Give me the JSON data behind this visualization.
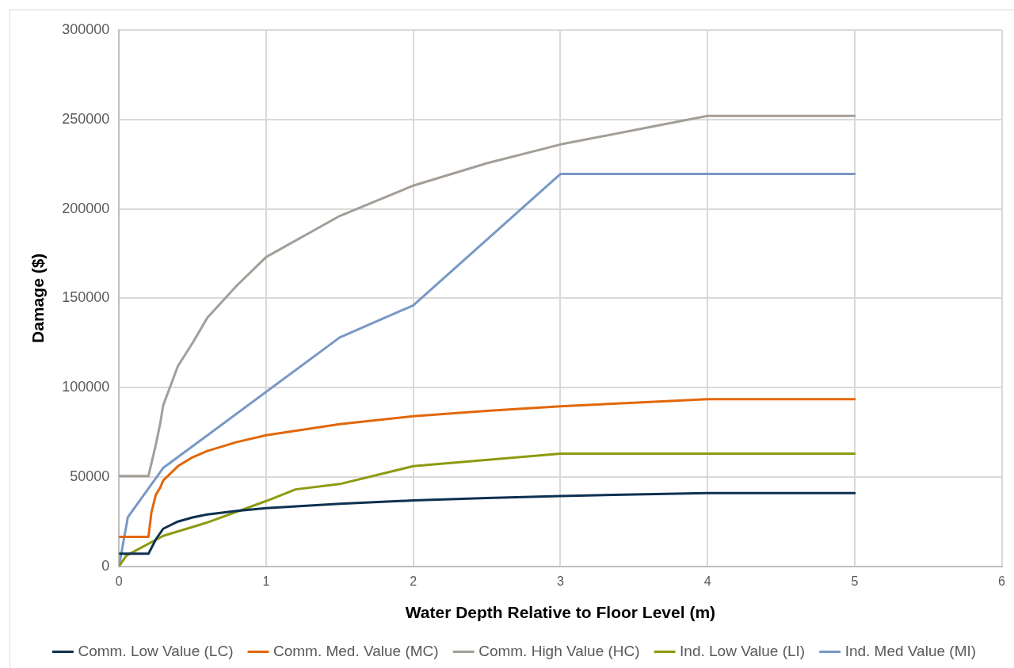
{
  "chart_data": {
    "type": "line",
    "xlabel": "Water Depth Relative to Floor Level (m)",
    "ylabel": "Damage ($)",
    "xlim": [
      0,
      6
    ],
    "xticks": [
      0,
      1,
      2,
      3,
      4,
      5,
      6
    ],
    "ylim": [
      0,
      300000
    ],
    "yticks": [
      0,
      50000,
      100000,
      150000,
      200000,
      250000,
      300000
    ],
    "grid": true,
    "legend": "bottom",
    "marker": "none",
    "line_style": "solid",
    "series": [
      {
        "name": "Comm. Low Value (LC)",
        "color": "#0e3150",
        "x": [
          0,
          0.2,
          0.25,
          0.3,
          0.4,
          0.5,
          0.6,
          0.8,
          1,
          1.5,
          2,
          2.5,
          3,
          3.5,
          4,
          5
        ],
        "values": [
          7000,
          7000,
          15000,
          21000,
          25000,
          27300,
          29000,
          31000,
          32500,
          35000,
          36800,
          38200,
          39300,
          40200,
          41000,
          41000
        ]
      },
      {
        "name": "Comm. Med. Value (MC)",
        "color": "#e2670a",
        "x": [
          0,
          0.2,
          0.22,
          0.25,
          0.28,
          0.3,
          0.4,
          0.5,
          0.6,
          0.8,
          1,
          1.5,
          2,
          2.5,
          3,
          3.5,
          4,
          5
        ],
        "values": [
          16500,
          16500,
          30000,
          40000,
          44000,
          48000,
          56000,
          61000,
          64500,
          69500,
          73300,
          79500,
          84000,
          87000,
          89500,
          91500,
          93500,
          93500
        ]
      },
      {
        "name": "Comm. High Value (HC)",
        "color": "#a49e98",
        "x": [
          0,
          0.2,
          0.25,
          0.28,
          0.3,
          0.4,
          0.5,
          0.6,
          0.8,
          1,
          1.5,
          2,
          2.5,
          3,
          3.5,
          4,
          5
        ],
        "values": [
          50500,
          50500,
          68000,
          80000,
          90000,
          112000,
          125000,
          139000,
          157000,
          173000,
          196000,
          213000,
          225500,
          236000,
          244000,
          252000,
          252000
        ]
      },
      {
        "name": "Ind. Low Value (LI)",
        "color": "#8d9a10",
        "x": [
          0,
          0.05,
          0.3,
          0.6,
          1,
          1.2,
          1.5,
          2,
          3,
          4,
          5
        ],
        "values": [
          0,
          6000,
          17000,
          24500,
          36500,
          43000,
          46000,
          56000,
          63000,
          63000,
          63000
        ]
      },
      {
        "name": "Ind. Med Value (MI)",
        "color": "#7898c4",
        "x": [
          0,
          0.06,
          0.3,
          1.5,
          2,
          3,
          4,
          5
        ],
        "values": [
          0,
          27500,
          55000,
          128000,
          146000,
          219500,
          219500,
          219500
        ]
      }
    ]
  }
}
